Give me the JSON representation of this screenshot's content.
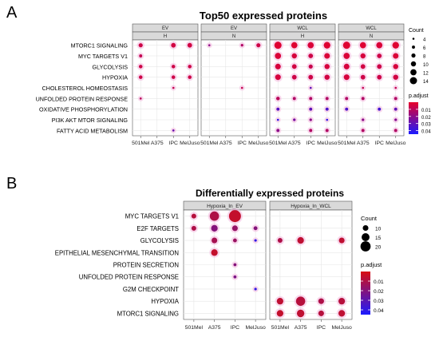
{
  "chart_data": [
    {
      "type": "scatter",
      "panel_label": "A",
      "title": "Top50 expressed proteins",
      "facets": [
        {
          "top": "EV",
          "sub": "H"
        },
        {
          "top": "EV",
          "sub": "N"
        },
        {
          "top": "WCL",
          "sub": "H"
        },
        {
          "top": "WCL",
          "sub": "N"
        }
      ],
      "categories_x": [
        "501Mel",
        "A375",
        "IPC",
        "MelJuso"
      ],
      "categories_y": [
        "MTORC1 SIGNALING",
        "MYC TARGETS V1",
        "GLYCOLYSIS",
        "HYPOXIA",
        "CHOLESTEROL HOMEOSTASIS",
        "UNFOLDED PROTEIN RESPONSE",
        "OXIDATIVE PHOSPHORYLATION",
        "PI3K AKT MTOR SIGNALING",
        "FATTY ACID METABOLISM"
      ],
      "points": [
        {
          "facet": 0,
          "x": 0,
          "y": 0,
          "count": 8,
          "p": 0.006
        },
        {
          "facet": 0,
          "x": 2,
          "y": 0,
          "count": 9,
          "p": 0.005
        },
        {
          "facet": 0,
          "x": 3,
          "y": 0,
          "count": 9,
          "p": 0.005
        },
        {
          "facet": 0,
          "x": 0,
          "y": 1,
          "count": 6,
          "p": 0.008
        },
        {
          "facet": 0,
          "x": 0,
          "y": 2,
          "count": 7,
          "p": 0.006
        },
        {
          "facet": 0,
          "x": 2,
          "y": 2,
          "count": 7,
          "p": 0.006
        },
        {
          "facet": 0,
          "x": 3,
          "y": 2,
          "count": 7,
          "p": 0.006
        },
        {
          "facet": 0,
          "x": 0,
          "y": 3,
          "count": 7,
          "p": 0.006
        },
        {
          "facet": 0,
          "x": 2,
          "y": 3,
          "count": 7,
          "p": 0.006
        },
        {
          "facet": 0,
          "x": 3,
          "y": 3,
          "count": 7,
          "p": 0.006
        },
        {
          "facet": 0,
          "x": 2,
          "y": 4,
          "count": 4,
          "p": 0.008
        },
        {
          "facet": 0,
          "x": 0,
          "y": 5,
          "count": 4,
          "p": 0.01
        },
        {
          "facet": 0,
          "x": 2,
          "y": 8,
          "count": 4,
          "p": 0.028
        },
        {
          "facet": 1,
          "x": 0,
          "y": 0,
          "count": 4,
          "p": 0.02
        },
        {
          "facet": 1,
          "x": 2,
          "y": 0,
          "count": 5,
          "p": 0.012
        },
        {
          "facet": 1,
          "x": 3,
          "y": 0,
          "count": 8,
          "p": 0.006
        },
        {
          "facet": 1,
          "x": 2,
          "y": 4,
          "count": 4,
          "p": 0.008
        },
        {
          "facet": 2,
          "x": 0,
          "y": 0,
          "count": 14,
          "p": 0.002
        },
        {
          "facet": 2,
          "x": 1,
          "y": 0,
          "count": 12,
          "p": 0.002
        },
        {
          "facet": 2,
          "x": 2,
          "y": 0,
          "count": 12,
          "p": 0.003
        },
        {
          "facet": 2,
          "x": 3,
          "y": 0,
          "count": 13,
          "p": 0.002
        },
        {
          "facet": 2,
          "x": 0,
          "y": 1,
          "count": 12,
          "p": 0.003
        },
        {
          "facet": 2,
          "x": 1,
          "y": 1,
          "count": 10,
          "p": 0.004
        },
        {
          "facet": 2,
          "x": 2,
          "y": 1,
          "count": 9,
          "p": 0.006
        },
        {
          "facet": 2,
          "x": 3,
          "y": 1,
          "count": 11,
          "p": 0.003
        },
        {
          "facet": 2,
          "x": 0,
          "y": 2,
          "count": 11,
          "p": 0.004
        },
        {
          "facet": 2,
          "x": 1,
          "y": 2,
          "count": 9,
          "p": 0.005
        },
        {
          "facet": 2,
          "x": 2,
          "y": 2,
          "count": 8,
          "p": 0.007
        },
        {
          "facet": 2,
          "x": 3,
          "y": 2,
          "count": 10,
          "p": 0.004
        },
        {
          "facet": 2,
          "x": 0,
          "y": 3,
          "count": 11,
          "p": 0.004
        },
        {
          "facet": 2,
          "x": 1,
          "y": 3,
          "count": 9,
          "p": 0.006
        },
        {
          "facet": 2,
          "x": 2,
          "y": 3,
          "count": 9,
          "p": 0.006
        },
        {
          "facet": 2,
          "x": 3,
          "y": 3,
          "count": 10,
          "p": 0.005
        },
        {
          "facet": 2,
          "x": 2,
          "y": 4,
          "count": 4,
          "p": 0.03
        },
        {
          "facet": 2,
          "x": 0,
          "y": 5,
          "count": 7,
          "p": 0.01
        },
        {
          "facet": 2,
          "x": 1,
          "y": 5,
          "count": 6,
          "p": 0.012
        },
        {
          "facet": 2,
          "x": 2,
          "y": 5,
          "count": 6,
          "p": 0.012
        },
        {
          "facet": 2,
          "x": 3,
          "y": 5,
          "count": 6,
          "p": 0.012
        },
        {
          "facet": 2,
          "x": 0,
          "y": 6,
          "count": 6,
          "p": 0.032
        },
        {
          "facet": 2,
          "x": 2,
          "y": 6,
          "count": 6,
          "p": 0.03
        },
        {
          "facet": 2,
          "x": 3,
          "y": 6,
          "count": 6,
          "p": 0.034
        },
        {
          "facet": 2,
          "x": 0,
          "y": 7,
          "count": 4,
          "p": 0.04
        },
        {
          "facet": 2,
          "x": 1,
          "y": 7,
          "count": 5,
          "p": 0.025
        },
        {
          "facet": 2,
          "x": 2,
          "y": 7,
          "count": 5,
          "p": 0.02
        },
        {
          "facet": 2,
          "x": 3,
          "y": 7,
          "count": 4,
          "p": 0.04
        },
        {
          "facet": 2,
          "x": 0,
          "y": 8,
          "count": 6,
          "p": 0.02
        },
        {
          "facet": 2,
          "x": 2,
          "y": 8,
          "count": 6,
          "p": 0.012
        },
        {
          "facet": 2,
          "x": 3,
          "y": 8,
          "count": 6,
          "p": 0.012
        },
        {
          "facet": 3,
          "x": 0,
          "y": 0,
          "count": 14,
          "p": 0.002
        },
        {
          "facet": 3,
          "x": 1,
          "y": 0,
          "count": 12,
          "p": 0.002
        },
        {
          "facet": 3,
          "x": 2,
          "y": 0,
          "count": 12,
          "p": 0.003
        },
        {
          "facet": 3,
          "x": 3,
          "y": 0,
          "count": 13,
          "p": 0.002
        },
        {
          "facet": 3,
          "x": 0,
          "y": 1,
          "count": 12,
          "p": 0.003
        },
        {
          "facet": 3,
          "x": 1,
          "y": 1,
          "count": 10,
          "p": 0.004
        },
        {
          "facet": 3,
          "x": 2,
          "y": 1,
          "count": 9,
          "p": 0.006
        },
        {
          "facet": 3,
          "x": 3,
          "y": 1,
          "count": 11,
          "p": 0.003
        },
        {
          "facet": 3,
          "x": 0,
          "y": 2,
          "count": 11,
          "p": 0.004
        },
        {
          "facet": 3,
          "x": 1,
          "y": 2,
          "count": 9,
          "p": 0.005
        },
        {
          "facet": 3,
          "x": 2,
          "y": 2,
          "count": 9,
          "p": 0.006
        },
        {
          "facet": 3,
          "x": 3,
          "y": 2,
          "count": 10,
          "p": 0.004
        },
        {
          "facet": 3,
          "x": 0,
          "y": 3,
          "count": 11,
          "p": 0.004
        },
        {
          "facet": 3,
          "x": 1,
          "y": 3,
          "count": 9,
          "p": 0.006
        },
        {
          "facet": 3,
          "x": 2,
          "y": 3,
          "count": 9,
          "p": 0.006
        },
        {
          "facet": 3,
          "x": 3,
          "y": 3,
          "count": 10,
          "p": 0.005
        },
        {
          "facet": 3,
          "x": 1,
          "y": 4,
          "count": 4,
          "p": 0.008
        },
        {
          "facet": 3,
          "x": 3,
          "y": 4,
          "count": 4,
          "p": 0.008
        },
        {
          "facet": 3,
          "x": 0,
          "y": 5,
          "count": 6,
          "p": 0.012
        },
        {
          "facet": 3,
          "x": 1,
          "y": 5,
          "count": 6,
          "p": 0.012
        },
        {
          "facet": 3,
          "x": 3,
          "y": 5,
          "count": 6,
          "p": 0.012
        },
        {
          "facet": 3,
          "x": 0,
          "y": 6,
          "count": 6,
          "p": 0.034
        },
        {
          "facet": 3,
          "x": 2,
          "y": 6,
          "count": 6,
          "p": 0.036
        },
        {
          "facet": 3,
          "x": 3,
          "y": 6,
          "count": 6,
          "p": 0.03
        },
        {
          "facet": 3,
          "x": 1,
          "y": 7,
          "count": 5,
          "p": 0.02
        },
        {
          "facet": 3,
          "x": 3,
          "y": 7,
          "count": 5,
          "p": 0.022
        },
        {
          "facet": 3,
          "x": 1,
          "y": 8,
          "count": 6,
          "p": 0.012
        },
        {
          "facet": 3,
          "x": 3,
          "y": 8,
          "count": 6,
          "p": 0.012
        }
      ],
      "size_legend": {
        "title": "Count",
        "values": [
          4,
          6,
          8,
          10,
          12,
          14
        ]
      },
      "color_legend": {
        "title": "p.adjust",
        "ticks": [
          0.01,
          0.02,
          0.03,
          0.04
        ],
        "range": [
          0.0,
          0.045
        ],
        "low_color": "#e8002a",
        "high_color": "#1b1bff"
      }
    },
    {
      "type": "scatter",
      "panel_label": "B",
      "title": "Differentially expressed proteins",
      "facets": [
        {
          "top": "Hypoxia_In_EV"
        },
        {
          "top": "Hypoxia_In_WCL"
        }
      ],
      "categories_x": [
        "501Mel",
        "A375",
        "IPC",
        "MelJuso"
      ],
      "categories_y": [
        "MYC TARGETS V1",
        "E2F TARGETS",
        "GLYCOLYSIS",
        "EPITHELIAL MESENCHYMAL TRANSITION",
        "PROTEIN SECRETION",
        "UNFOLDED PROTEIN RESPONSE",
        "G2M CHECKPOINT",
        "HYPOXIA",
        "MTORC1 SIGNALING"
      ],
      "points": [
        {
          "facet": 0,
          "x": 0,
          "y": 0,
          "count": 8,
          "p": 0.008
        },
        {
          "facet": 0,
          "x": 1,
          "y": 0,
          "count": 18,
          "p": 0.01
        },
        {
          "facet": 0,
          "x": 2,
          "y": 0,
          "count": 24,
          "p": 0.005
        },
        {
          "facet": 0,
          "x": 0,
          "y": 1,
          "count": 8,
          "p": 0.01
        },
        {
          "facet": 0,
          "x": 1,
          "y": 1,
          "count": 12,
          "p": 0.02
        },
        {
          "facet": 0,
          "x": 2,
          "y": 1,
          "count": 10,
          "p": 0.016
        },
        {
          "facet": 0,
          "x": 3,
          "y": 1,
          "count": 6,
          "p": 0.02
        },
        {
          "facet": 0,
          "x": 1,
          "y": 2,
          "count": 10,
          "p": 0.012
        },
        {
          "facet": 0,
          "x": 2,
          "y": 2,
          "count": 6,
          "p": 0.015
        },
        {
          "facet": 0,
          "x": 3,
          "y": 2,
          "count": 3,
          "p": 0.04
        },
        {
          "facet": 0,
          "x": 1,
          "y": 3,
          "count": 12,
          "p": 0.005
        },
        {
          "facet": 0,
          "x": 2,
          "y": 4,
          "count": 4,
          "p": 0.02
        },
        {
          "facet": 0,
          "x": 2,
          "y": 5,
          "count": 4,
          "p": 0.022
        },
        {
          "facet": 0,
          "x": 3,
          "y": 6,
          "count": 3,
          "p": 0.04
        },
        {
          "facet": 1,
          "x": 0,
          "y": 2,
          "count": 8,
          "p": 0.01
        },
        {
          "facet": 1,
          "x": 1,
          "y": 2,
          "count": 12,
          "p": 0.006
        },
        {
          "facet": 1,
          "x": 3,
          "y": 2,
          "count": 10,
          "p": 0.006
        },
        {
          "facet": 1,
          "x": 0,
          "y": 7,
          "count": 12,
          "p": 0.006
        },
        {
          "facet": 1,
          "x": 1,
          "y": 7,
          "count": 18,
          "p": 0.008
        },
        {
          "facet": 1,
          "x": 2,
          "y": 7,
          "count": 10,
          "p": 0.01
        },
        {
          "facet": 1,
          "x": 3,
          "y": 7,
          "count": 12,
          "p": 0.008
        },
        {
          "facet": 1,
          "x": 0,
          "y": 8,
          "count": 12,
          "p": 0.005
        },
        {
          "facet": 1,
          "x": 1,
          "y": 8,
          "count": 14,
          "p": 0.006
        },
        {
          "facet": 1,
          "x": 2,
          "y": 8,
          "count": 10,
          "p": 0.008
        },
        {
          "facet": 1,
          "x": 3,
          "y": 8,
          "count": 12,
          "p": 0.006
        }
      ],
      "size_legend": {
        "title": "Count",
        "values": [
          10,
          15,
          20
        ]
      },
      "color_legend": {
        "title": "p.adjust",
        "ticks": [
          0.01,
          0.02,
          0.03,
          0.04
        ],
        "range": [
          0.0,
          0.045
        ],
        "low_color": "#d80d12",
        "high_color": "#1b1bff"
      }
    }
  ]
}
